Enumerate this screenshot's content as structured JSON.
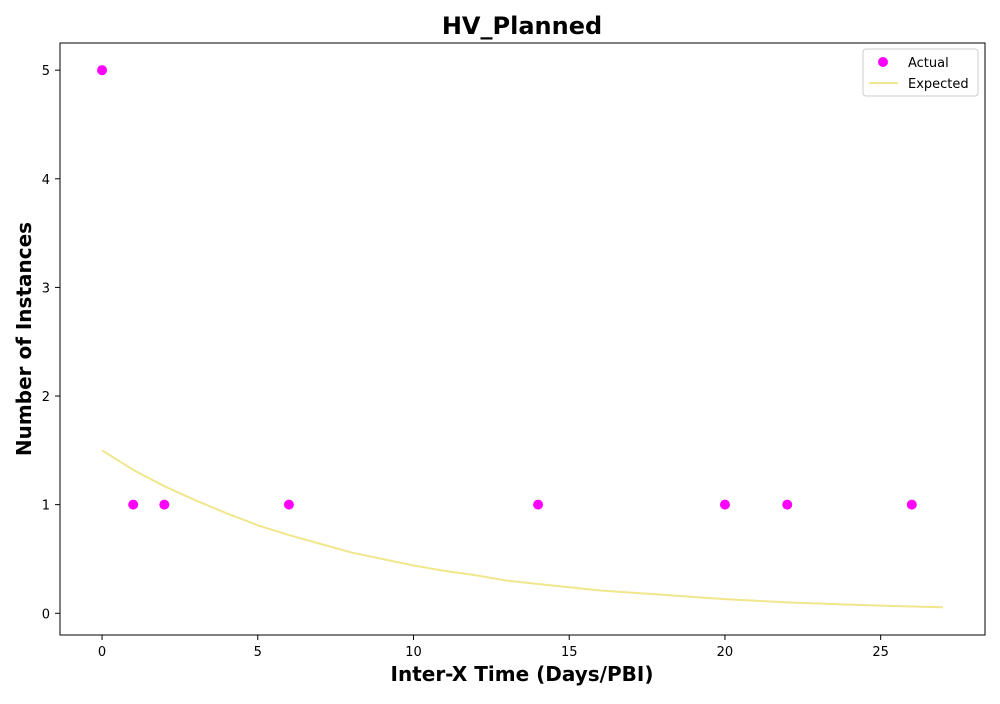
{
  "chart_data": {
    "type": "scatter",
    "title": "HV_Planned",
    "xlabel": "Inter-X Time (Days/PBI)",
    "ylabel": "Number of Instances",
    "xlim": [
      -1.35,
      28.35
    ],
    "ylim": [
      -0.2,
      5.25
    ],
    "x_ticks": [
      0,
      5,
      10,
      15,
      20,
      25
    ],
    "y_ticks": [
      0,
      1,
      2,
      3,
      4,
      5
    ],
    "grid": false,
    "legend_position": "top-right",
    "series": [
      {
        "name": "Actual",
        "kind": "scatter",
        "color": "#ff00ff",
        "points": [
          {
            "x": 0,
            "y": 5
          },
          {
            "x": 1,
            "y": 1
          },
          {
            "x": 2,
            "y": 1
          },
          {
            "x": 6,
            "y": 1
          },
          {
            "x": 14,
            "y": 1
          },
          {
            "x": 20,
            "y": 1
          },
          {
            "x": 22,
            "y": 1
          },
          {
            "x": 26,
            "y": 1
          }
        ]
      },
      {
        "name": "Expected",
        "kind": "line",
        "color": "#f0e68c",
        "points": [
          {
            "x": 0,
            "y": 1.5
          },
          {
            "x": 1,
            "y": 1.32
          },
          {
            "x": 2,
            "y": 1.17
          },
          {
            "x": 3,
            "y": 1.04
          },
          {
            "x": 4,
            "y": 0.92
          },
          {
            "x": 5,
            "y": 0.81
          },
          {
            "x": 6,
            "y": 0.72
          },
          {
            "x": 7,
            "y": 0.64
          },
          {
            "x": 8,
            "y": 0.56
          },
          {
            "x": 9,
            "y": 0.5
          },
          {
            "x": 10,
            "y": 0.44
          },
          {
            "x": 11,
            "y": 0.39
          },
          {
            "x": 12,
            "y": 0.35
          },
          {
            "x": 13,
            "y": 0.3
          },
          {
            "x": 14,
            "y": 0.27
          },
          {
            "x": 15,
            "y": 0.24
          },
          {
            "x": 16,
            "y": 0.21
          },
          {
            "x": 17,
            "y": 0.19
          },
          {
            "x": 18,
            "y": 0.17
          },
          {
            "x": 19,
            "y": 0.15
          },
          {
            "x": 20,
            "y": 0.13
          },
          {
            "x": 21,
            "y": 0.115
          },
          {
            "x": 22,
            "y": 0.1
          },
          {
            "x": 23,
            "y": 0.09
          },
          {
            "x": 24,
            "y": 0.08
          },
          {
            "x": 25,
            "y": 0.07
          },
          {
            "x": 26,
            "y": 0.062
          },
          {
            "x": 27,
            "y": 0.055
          }
        ]
      }
    ]
  }
}
